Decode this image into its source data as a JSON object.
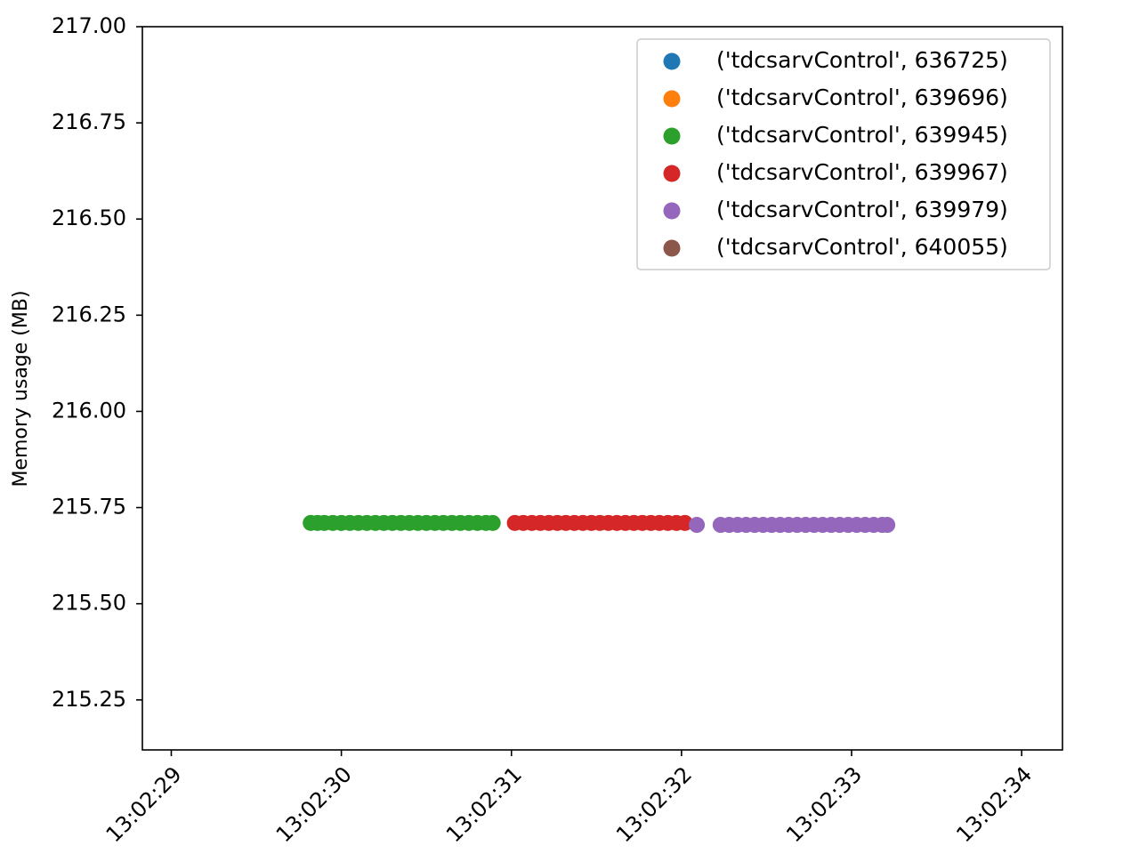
{
  "chart_data": {
    "type": "scatter",
    "title": "",
    "xlabel": "",
    "ylabel": "Memory usage (MB)",
    "x_is_time": true,
    "xlim": [
      "13:02:28.830",
      "13:02:34.240"
    ],
    "ylim": [
      215.12,
      217.0
    ],
    "xticks": [
      "13:02:29",
      "13:02:30",
      "13:02:31",
      "13:02:32",
      "13:02:33",
      "13:02:34"
    ],
    "yticks": [
      "215.25",
      "215.50",
      "215.75",
      "216.00",
      "216.25",
      "216.50",
      "216.75",
      "217.00"
    ],
    "ytick_values": [
      215.25,
      215.5,
      215.75,
      216.0,
      216.25,
      216.5,
      216.75,
      217.0
    ],
    "grid": false,
    "legend_position": "top-right",
    "series": [
      {
        "name": "('tdcsarvControl', 636725)",
        "color": "#1f77b4",
        "points": []
      },
      {
        "name": "('tdcsarvControl', 639696)",
        "color": "#ff7f0e",
        "points": []
      },
      {
        "name": "('tdcsarvControl', 639945)",
        "color": "#2ca02c",
        "points": [
          [
            "13:02:29.820",
            215.71
          ],
          [
            "13:02:29.860",
            215.71
          ],
          [
            "13:02:29.900",
            215.71
          ],
          [
            "13:02:29.950",
            215.71
          ],
          [
            "13:02:30.000",
            215.71
          ],
          [
            "13:02:30.050",
            215.71
          ],
          [
            "13:02:30.100",
            215.71
          ],
          [
            "13:02:30.150",
            215.71
          ],
          [
            "13:02:30.200",
            215.71
          ],
          [
            "13:02:30.250",
            215.71
          ],
          [
            "13:02:30.300",
            215.71
          ],
          [
            "13:02:30.350",
            215.71
          ],
          [
            "13:02:30.400",
            215.71
          ],
          [
            "13:02:30.450",
            215.71
          ],
          [
            "13:02:30.500",
            215.71
          ],
          [
            "13:02:30.550",
            215.71
          ],
          [
            "13:02:30.600",
            215.71
          ],
          [
            "13:02:30.650",
            215.71
          ],
          [
            "13:02:30.700",
            215.71
          ],
          [
            "13:02:30.750",
            215.71
          ],
          [
            "13:02:30.800",
            215.71
          ],
          [
            "13:02:30.850",
            215.71
          ],
          [
            "13:02:30.890",
            215.71
          ]
        ]
      },
      {
        "name": "('tdcsarvControl', 639967)",
        "color": "#d62728",
        "points": [
          [
            "13:02:31.020",
            215.71
          ],
          [
            "13:02:31.070",
            215.71
          ],
          [
            "13:02:31.120",
            215.71
          ],
          [
            "13:02:31.170",
            215.71
          ],
          [
            "13:02:31.220",
            215.71
          ],
          [
            "13:02:31.270",
            215.71
          ],
          [
            "13:02:31.320",
            215.71
          ],
          [
            "13:02:31.370",
            215.71
          ],
          [
            "13:02:31.420",
            215.71
          ],
          [
            "13:02:31.470",
            215.71
          ],
          [
            "13:02:31.520",
            215.71
          ],
          [
            "13:02:31.570",
            215.71
          ],
          [
            "13:02:31.620",
            215.71
          ],
          [
            "13:02:31.670",
            215.71
          ],
          [
            "13:02:31.720",
            215.71
          ],
          [
            "13:02:31.770",
            215.71
          ],
          [
            "13:02:31.820",
            215.71
          ],
          [
            "13:02:31.870",
            215.71
          ],
          [
            "13:02:31.920",
            215.71
          ],
          [
            "13:02:31.970",
            215.71
          ],
          [
            "13:02:32.020",
            215.71
          ]
        ]
      },
      {
        "name": "('tdcsarvControl', 639979)",
        "color": "#9467bd",
        "points": [
          [
            "13:02:32.090",
            215.705
          ],
          [
            "13:02:32.230",
            215.705
          ],
          [
            "13:02:32.280",
            215.705
          ],
          [
            "13:02:32.330",
            215.705
          ],
          [
            "13:02:32.380",
            215.705
          ],
          [
            "13:02:32.430",
            215.705
          ],
          [
            "13:02:32.480",
            215.705
          ],
          [
            "13:02:32.530",
            215.705
          ],
          [
            "13:02:32.580",
            215.705
          ],
          [
            "13:02:32.630",
            215.705
          ],
          [
            "13:02:32.680",
            215.705
          ],
          [
            "13:02:32.730",
            215.705
          ],
          [
            "13:02:32.780",
            215.705
          ],
          [
            "13:02:32.830",
            215.705
          ],
          [
            "13:02:32.880",
            215.705
          ],
          [
            "13:02:32.930",
            215.705
          ],
          [
            "13:02:32.980",
            215.705
          ],
          [
            "13:02:33.030",
            215.705
          ],
          [
            "13:02:33.080",
            215.705
          ],
          [
            "13:02:33.130",
            215.705
          ],
          [
            "13:02:33.180",
            215.705
          ],
          [
            "13:02:33.210",
            215.705
          ]
        ]
      },
      {
        "name": "('tdcsarvControl', 640055)",
        "color": "#8c564b",
        "points": []
      }
    ]
  }
}
